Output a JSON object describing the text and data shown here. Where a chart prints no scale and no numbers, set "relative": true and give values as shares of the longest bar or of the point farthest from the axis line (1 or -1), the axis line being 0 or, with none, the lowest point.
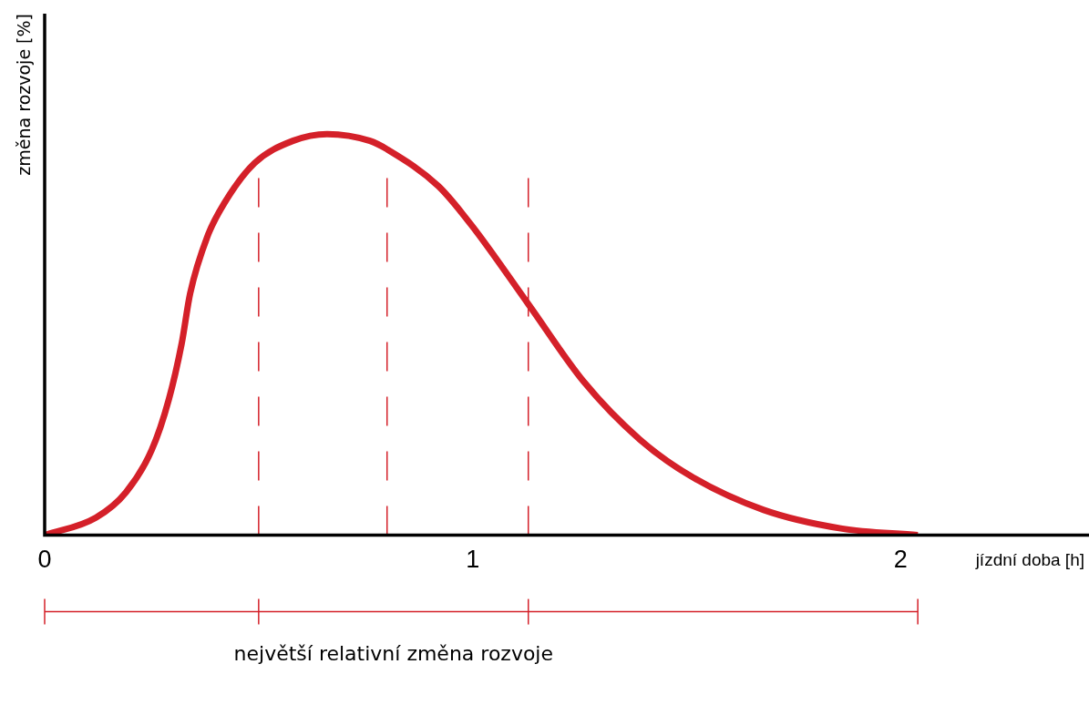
{
  "chart_data": {
    "type": "line",
    "ylabel": "změna rozvoje [%]",
    "xlabel": "jízdní doba [h]",
    "relative": true,
    "xlim": [
      0,
      2.44
    ],
    "xticks": [
      0,
      1,
      2
    ],
    "grid": false,
    "legend": false,
    "marker": "none",
    "line_style": "solid",
    "series": [
      {
        "color": "#d42029",
        "x": [
          0,
          0.12,
          0.19,
          0.25,
          0.29,
          0.32,
          0.34,
          0.38,
          0.42,
          0.49,
          0.58,
          0.66,
          0.76,
          0.8,
          0.92,
          1.0,
          1.13,
          1.26,
          1.39,
          1.51,
          1.68,
          1.86,
          2.04
        ],
        "values": [
          0,
          0.044,
          0.107,
          0.212,
          0.338,
          0.477,
          0.603,
          0.744,
          0.828,
          0.927,
          0.983,
          1.0,
          0.983,
          0.962,
          0.87,
          0.769,
          0.576,
          0.382,
          0.239,
          0.147,
          0.063,
          0.017,
          0
        ]
      }
    ],
    "ref_lines": [
      {
        "axis": "x",
        "value": 0.5,
        "color": "#d42029",
        "line_style": "dashed"
      },
      {
        "axis": "x",
        "value": 0.8,
        "color": "#d42029",
        "line_style": "dashed"
      },
      {
        "axis": "x",
        "value": 1.13,
        "color": "#d42029",
        "line_style": "dashed"
      }
    ],
    "annotations": [
      "největší relativní změna rozvoje"
    ]
  }
}
